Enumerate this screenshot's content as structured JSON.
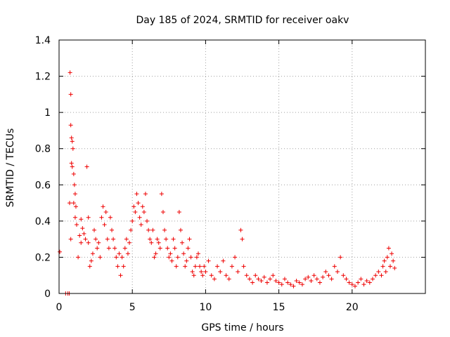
{
  "chart_data": {
    "type": "scatter",
    "title": "Day 185 of 2024, SRMTID for receiver oakv",
    "xlabel": "GPS time / hours",
    "ylabel": "SRMTID / TECUs",
    "xlim": [
      0,
      25
    ],
    "ylim": [
      0,
      1.4
    ],
    "xticks": [
      0,
      5,
      10,
      15,
      20
    ],
    "xtick_labels": [
      "0",
      "5",
      "10",
      "15",
      "20"
    ],
    "yticks": [
      0,
      0.2,
      0.4,
      0.6,
      0.8,
      1.0,
      1.2,
      1.4
    ],
    "ytick_labels": [
      "0",
      "0.2",
      "0.4",
      "0.6",
      "0.8",
      "1",
      "1.2",
      "1.4"
    ],
    "grid": true,
    "marker": "+",
    "series": [
      {
        "name": "SRMTID",
        "color": "#ee0000",
        "x": [
          0.05,
          0.45,
          0.6,
          0.7,
          0.72,
          0.75,
          0.8,
          0.8,
          0.8,
          0.85,
          0.85,
          0.9,
          0.9,
          0.95,
          1.0,
          1.0,
          1.05,
          1.1,
          1.1,
          1.15,
          1.2,
          1.3,
          1.4,
          1.5,
          1.5,
          1.6,
          1.7,
          1.8,
          1.9,
          2.0,
          2.0,
          2.1,
          2.2,
          2.3,
          2.4,
          2.5,
          2.6,
          2.7,
          2.8,
          2.9,
          3.0,
          3.1,
          3.2,
          3.3,
          3.4,
          3.5,
          3.6,
          3.7,
          3.8,
          3.9,
          4.0,
          4.1,
          4.2,
          4.3,
          4.4,
          4.5,
          4.6,
          4.7,
          4.8,
          4.9,
          5.0,
          5.1,
          5.2,
          5.3,
          5.4,
          5.5,
          5.6,
          5.7,
          5.8,
          5.9,
          6.0,
          6.1,
          6.2,
          6.3,
          6.4,
          6.5,
          6.6,
          6.7,
          6.8,
          6.9,
          7.0,
          7.1,
          7.2,
          7.3,
          7.4,
          7.5,
          7.6,
          7.7,
          7.8,
          7.9,
          8.0,
          8.1,
          8.2,
          8.3,
          8.4,
          8.5,
          8.6,
          8.7,
          8.8,
          8.9,
          9.0,
          9.1,
          9.2,
          9.3,
          9.4,
          9.5,
          9.6,
          9.7,
          9.8,
          9.9,
          10.0,
          10.2,
          10.4,
          10.6,
          10.8,
          11.0,
          11.2,
          11.4,
          11.6,
          11.8,
          12.0,
          12.2,
          12.4,
          12.5,
          12.6,
          12.8,
          13.0,
          13.2,
          13.4,
          13.6,
          13.8,
          14.0,
          14.2,
          14.4,
          14.6,
          14.8,
          15.0,
          15.2,
          15.4,
          15.6,
          15.8,
          16.0,
          16.2,
          16.4,
          16.6,
          16.8,
          17.0,
          17.2,
          17.4,
          17.6,
          17.8,
          18.0,
          18.2,
          18.4,
          18.6,
          18.8,
          19.0,
          19.2,
          19.4,
          19.6,
          19.8,
          20.0,
          20.2,
          20.4,
          20.6,
          20.8,
          21.0,
          21.2,
          21.4,
          21.6,
          21.8,
          22.0,
          22.1,
          22.2,
          22.3,
          22.4,
          22.5,
          22.6,
          22.7,
          22.8,
          22.9
        ],
        "y": [
          0.23,
          0.0,
          0.0,
          0.0,
          0.5,
          1.22,
          1.1,
          0.93,
          0.3,
          0.86,
          0.72,
          0.84,
          0.7,
          0.8,
          0.66,
          0.5,
          0.6,
          0.55,
          0.42,
          0.48,
          0.38,
          0.2,
          0.32,
          0.41,
          0.28,
          0.36,
          0.33,
          0.3,
          0.7,
          0.28,
          0.42,
          0.15,
          0.18,
          0.22,
          0.35,
          0.3,
          0.25,
          0.28,
          0.2,
          0.42,
          0.48,
          0.38,
          0.45,
          0.3,
          0.25,
          0.42,
          0.35,
          0.3,
          0.25,
          0.2,
          0.15,
          0.22,
          0.1,
          0.2,
          0.15,
          0.25,
          0.3,
          0.22,
          0.28,
          0.35,
          0.4,
          0.48,
          0.45,
          0.55,
          0.5,
          0.42,
          0.38,
          0.48,
          0.45,
          0.55,
          0.4,
          0.35,
          0.3,
          0.28,
          0.35,
          0.2,
          0.22,
          0.3,
          0.28,
          0.25,
          0.55,
          0.45,
          0.35,
          0.3,
          0.25,
          0.2,
          0.22,
          0.18,
          0.3,
          0.25,
          0.15,
          0.2,
          0.45,
          0.35,
          0.28,
          0.22,
          0.15,
          0.18,
          0.25,
          0.3,
          0.2,
          0.12,
          0.1,
          0.15,
          0.2,
          0.22,
          0.15,
          0.12,
          0.1,
          0.15,
          0.12,
          0.18,
          0.1,
          0.08,
          0.15,
          0.12,
          0.18,
          0.1,
          0.08,
          0.15,
          0.2,
          0.12,
          0.35,
          0.3,
          0.15,
          0.1,
          0.08,
          0.06,
          0.1,
          0.08,
          0.07,
          0.09,
          0.06,
          0.08,
          0.1,
          0.07,
          0.06,
          0.05,
          0.08,
          0.06,
          0.05,
          0.04,
          0.07,
          0.06,
          0.05,
          0.08,
          0.09,
          0.07,
          0.1,
          0.08,
          0.06,
          0.09,
          0.12,
          0.1,
          0.08,
          0.15,
          0.12,
          0.2,
          0.1,
          0.08,
          0.06,
          0.05,
          0.04,
          0.06,
          0.08,
          0.05,
          0.07,
          0.06,
          0.08,
          0.1,
          0.12,
          0.1,
          0.15,
          0.18,
          0.12,
          0.2,
          0.25,
          0.15,
          0.22,
          0.18,
          0.14
        ]
      }
    ]
  }
}
